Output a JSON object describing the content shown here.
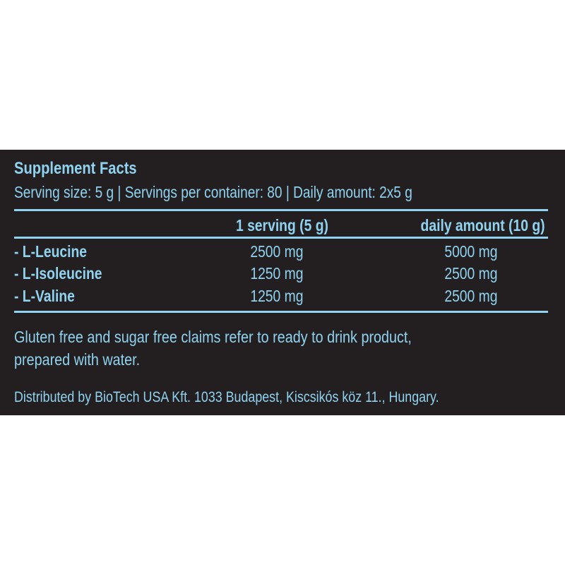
{
  "label": {
    "title": "Supplement Facts",
    "serving_info": "Serving size: 5 g | Servings per container: 80 | Daily amount: 2x5 g",
    "columns": [
      "1 serving (5 g)",
      "daily amount (10 g)"
    ],
    "rows": [
      {
        "name": "- L-Leucine",
        "serving": "2500 mg",
        "daily": "5000 mg"
      },
      {
        "name": "- L-Isoleucine",
        "serving": "1250 mg",
        "daily": "2500 mg"
      },
      {
        "name": "- L-Valine",
        "serving": "1250 mg",
        "daily": "2500 mg"
      }
    ],
    "note_line1": "Gluten free and sugar free claims refer to ready to drink product,",
    "note_line2": "prepared with water.",
    "distributor": "Distributed by BioTech USA Kft. 1033 Budapest, Kiscsikós köz 11., Hungary."
  },
  "colors": {
    "background": "#231f20",
    "text": "#8fd3f0"
  }
}
